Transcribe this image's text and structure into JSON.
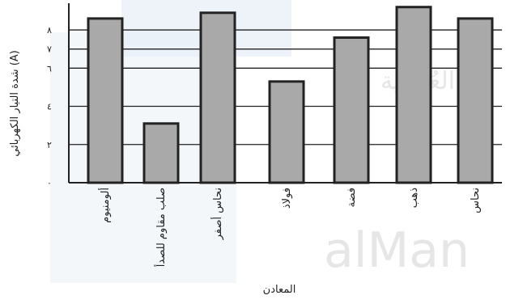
{
  "chart_data": {
    "type": "bar",
    "categories": [
      "ألومنيوم",
      "صلب مقاوم للصدأ",
      "نحاس أصفر",
      "فولاذ",
      "فضة",
      "ذهب",
      "نحاس"
    ],
    "values": [
      8.6,
      3.1,
      8.9,
      5.3,
      7.6,
      9.2,
      8.6
    ],
    "ylim": [
      0,
      9.4
    ],
    "yticks": [
      0,
      2,
      4,
      6,
      7,
      8
    ],
    "ytick_labels": [
      "٠",
      "٢",
      "٤",
      "٦",
      "٧",
      "٨"
    ],
    "ylabel": "شدة التيار الكهربائي (A)",
    "xlabel": "المعادن",
    "grid": true,
    "colors": {
      "bar_fill": "#a9a9a9",
      "bar_edge": "#222222",
      "grid": "#222222"
    }
  },
  "watermark": {
    "brand": "alMan",
    "text_ar": "العُمانية"
  }
}
